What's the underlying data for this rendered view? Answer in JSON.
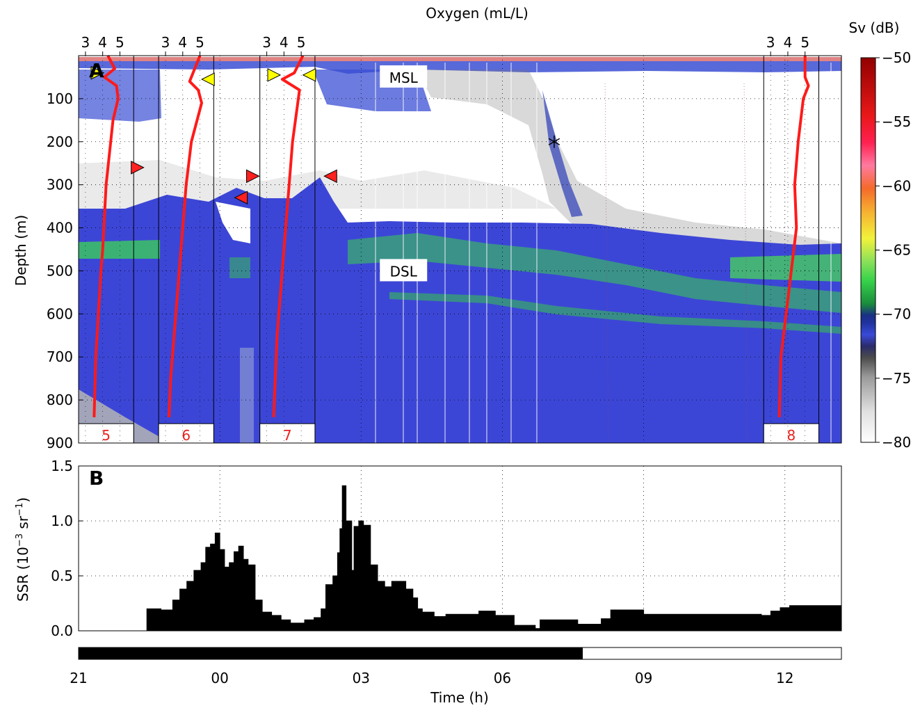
{
  "chart_data": [
    {
      "panel": "A",
      "type": "heatmap",
      "title": "",
      "top_axis_label": "Oxygen (mL/L)",
      "ylabel": "Depth (m)",
      "ylim": [
        900,
        0
      ],
      "y_ticks": [
        "100",
        "200",
        "300",
        "400",
        "500",
        "600",
        "700",
        "800",
        "900"
      ],
      "colorbar": {
        "label": "Sv (dB)",
        "range": [
          -80,
          -50
        ],
        "ticks": [
          "−50",
          "−55",
          "−60",
          "−65",
          "−70",
          "−75",
          "−80"
        ]
      },
      "layer_labels": [
        {
          "text": "MSL",
          "time_h": 3.9,
          "depth_m": 50
        },
        {
          "text": "DSL",
          "time_h": 3.9,
          "depth_m": 500
        }
      ],
      "oxygen_profiles": [
        {
          "cast": "5",
          "time_start_h": 21.0,
          "time_end_h": 22.17,
          "oxygen_ticks": [
            "3",
            "4",
            "5"
          ],
          "profile": [
            [
              4.3,
              0
            ],
            [
              4.7,
              30
            ],
            [
              4.1,
              50
            ],
            [
              4.8,
              70
            ],
            [
              4.9,
              100
            ],
            [
              4.6,
              150
            ],
            [
              4.2,
              300
            ],
            [
              4.0,
              450
            ],
            [
              3.9,
              500
            ],
            [
              3.6,
              700
            ],
            [
              3.5,
              840
            ]
          ]
        },
        {
          "cast": "6",
          "time_start_h": 22.7,
          "time_end_h": 23.87,
          "oxygen_ticks": [
            "3",
            "4",
            "5"
          ],
          "profile": [
            [
              5.0,
              0
            ],
            [
              4.4,
              60
            ],
            [
              4.9,
              80
            ],
            [
              5.1,
              110
            ],
            [
              4.5,
              200
            ],
            [
              4.2,
              300
            ],
            [
              3.9,
              450
            ],
            [
              3.6,
              600
            ],
            [
              3.3,
              750
            ],
            [
              3.2,
              840
            ]
          ]
        },
        {
          "cast": "7",
          "time_start_h": 0.85,
          "time_end_h": 2.02,
          "oxygen_ticks": [
            "3",
            "4",
            "5"
          ],
          "profile": [
            [
              5.1,
              0
            ],
            [
              4.6,
              40
            ],
            [
              3.9,
              55
            ],
            [
              4.9,
              80
            ],
            [
              4.8,
              110
            ],
            [
              4.5,
              200
            ],
            [
              4.3,
              300
            ],
            [
              4.1,
              400
            ],
            [
              3.9,
              500
            ],
            [
              3.6,
              650
            ],
            [
              3.4,
              840
            ]
          ]
        },
        {
          "cast": "8",
          "time_start_h": 11.55,
          "time_end_h": 12.72,
          "oxygen_ticks": [
            "3",
            "4",
            "5"
          ],
          "profile": [
            [
              5.0,
              0
            ],
            [
              5.0,
              50
            ],
            [
              5.2,
              70
            ],
            [
              4.9,
              100
            ],
            [
              4.6,
              200
            ],
            [
              4.4,
              300
            ],
            [
              4.5,
              400
            ],
            [
              4.2,
              500
            ],
            [
              3.9,
              600
            ],
            [
              3.6,
              700
            ],
            [
              3.5,
              840
            ]
          ]
        }
      ],
      "markers": [
        {
          "type": "yellow-right-triangle",
          "time_h": 21.4,
          "depth_m": 40
        },
        {
          "type": "yellow-left-triangle",
          "time_h": 23.75,
          "depth_m": 55
        },
        {
          "type": "yellow-right-triangle",
          "time_h": 1.15,
          "depth_m": 45
        },
        {
          "type": "yellow-left-triangle",
          "time_h": 1.9,
          "depth_m": 45
        },
        {
          "type": "red-right-triangle",
          "time_h": 22.25,
          "depth_m": 260
        },
        {
          "type": "red-right-triangle",
          "time_h": 0.7,
          "depth_m": 280
        },
        {
          "type": "red-left-triangle",
          "time_h": 0.45,
          "depth_m": 330
        },
        {
          "type": "red-left-triangle",
          "time_h": 2.35,
          "depth_m": 280
        },
        {
          "type": "star",
          "time_h": 7.1,
          "depth_m": 200
        }
      ],
      "colors": {
        "profile": "#ff1a1a",
        "marker_yellow": "#ffff00",
        "marker_red": "#ff2020",
        "cast_label": "#e8231f"
      }
    },
    {
      "panel": "B",
      "type": "bar",
      "ylabel": "SSR (10−3 sr−1)",
      "ylim": [
        0,
        1.5
      ],
      "y_ticks": [
        "0.0",
        "0.5",
        "1.0",
        "1.5"
      ],
      "xlabel": "Time (h)",
      "x_ticks": [
        "21",
        "00",
        "03",
        "06",
        "09",
        "12"
      ],
      "x_tick_hours": [
        21,
        24,
        27,
        30,
        33,
        36
      ],
      "xlim": [
        21,
        37.2
      ],
      "step_series": [
        [
          21.0,
          0.0
        ],
        [
          22.45,
          0.2
        ],
        [
          22.75,
          0.19
        ],
        [
          23.0,
          0.28
        ],
        [
          23.15,
          0.38
        ],
        [
          23.3,
          0.45
        ],
        [
          23.45,
          0.55
        ],
        [
          23.6,
          0.62
        ],
        [
          23.7,
          0.76
        ],
        [
          23.8,
          0.79
        ],
        [
          23.9,
          0.89
        ],
        [
          24.0,
          0.74
        ],
        [
          24.1,
          0.58
        ],
        [
          24.2,
          0.62
        ],
        [
          24.3,
          0.72
        ],
        [
          24.4,
          0.77
        ],
        [
          24.5,
          0.65
        ],
        [
          24.6,
          0.6
        ],
        [
          24.75,
          0.28
        ],
        [
          24.9,
          0.17
        ],
        [
          25.1,
          0.14
        ],
        [
          25.3,
          0.1
        ],
        [
          25.5,
          0.07
        ],
        [
          25.8,
          0.1
        ],
        [
          26.0,
          0.12
        ],
        [
          26.15,
          0.2
        ],
        [
          26.25,
          0.42
        ],
        [
          26.4,
          0.5
        ],
        [
          26.5,
          0.71
        ],
        [
          26.55,
          0.93
        ],
        [
          26.6,
          1.32
        ],
        [
          26.68,
          1.0
        ],
        [
          26.8,
          0.55
        ],
        [
          26.85,
          0.95
        ],
        [
          26.95,
          1.0
        ],
        [
          27.05,
          0.96
        ],
        [
          27.2,
          0.6
        ],
        [
          27.35,
          0.45
        ],
        [
          27.5,
          0.4
        ],
        [
          27.65,
          0.45
        ],
        [
          27.8,
          0.45
        ],
        [
          27.95,
          0.38
        ],
        [
          28.1,
          0.3
        ],
        [
          28.2,
          0.2
        ],
        [
          28.3,
          0.17
        ],
        [
          28.55,
          0.13
        ],
        [
          28.8,
          0.15
        ],
        [
          29.5,
          0.18
        ],
        [
          29.85,
          0.14
        ],
        [
          30.0,
          0.14
        ],
        [
          30.25,
          0.05
        ],
        [
          30.7,
          0.02
        ],
        [
          30.8,
          0.1
        ],
        [
          31.6,
          0.06
        ],
        [
          32.1,
          0.11
        ],
        [
          32.3,
          0.19
        ],
        [
          33.0,
          0.15
        ],
        [
          34.3,
          0.15
        ],
        [
          35.5,
          0.14
        ],
        [
          35.7,
          0.18
        ],
        [
          35.9,
          0.21
        ],
        [
          36.1,
          0.23
        ],
        [
          37.2,
          0.0
        ]
      ],
      "day_night_bar": {
        "night_start_h": 21.0,
        "night_end_h": 31.7,
        "day_end_h": 37.2,
        "night_color": "#000000",
        "day_color": "#ffffff"
      }
    }
  ],
  "panel_letters": [
    "A",
    "B"
  ]
}
